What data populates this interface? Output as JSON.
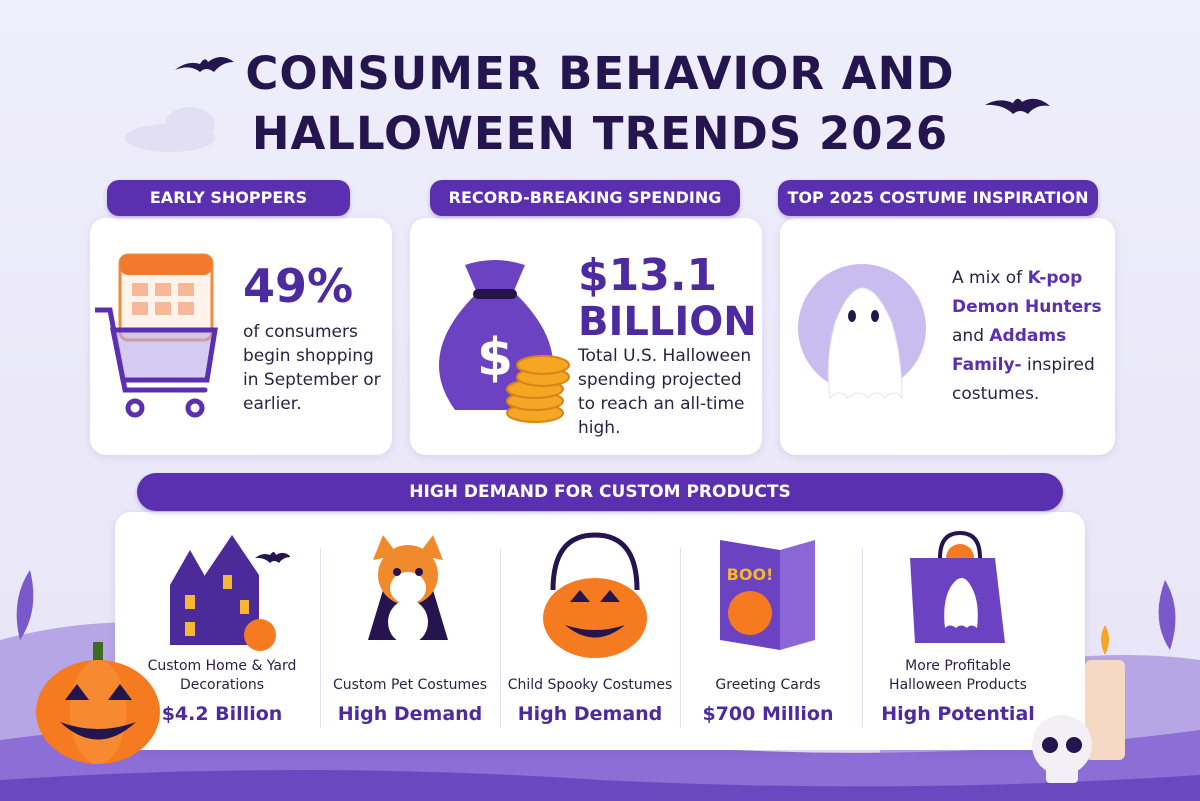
{
  "title": {
    "line1": "CONSUMER BEHAVIOR AND",
    "line2": "HALLOWEEN TRENDS 2026"
  },
  "cards": [
    {
      "header": "EARLY SHOPPERS",
      "stat": "49%",
      "text": "of consumers begin shopping in September or earlier."
    },
    {
      "header": "RECORD-BREAKING SPENDING",
      "stat": "$13.1",
      "stat_unit": "BILLION",
      "text": "Total U.S. Halloween spending projected to reach an all-time high."
    },
    {
      "header": "TOP 2025 COSTUME INSPIRATION",
      "text_parts": [
        "A mix of",
        "K-pop Demon Hunters",
        "and",
        "Addams Family-",
        "inspired costumes."
      ]
    }
  ],
  "custom_products": {
    "header": "HIGH DEMAND FOR CUSTOM PRODUCTS",
    "items": [
      {
        "label": "Custom Home & Yard Decorations",
        "value": "$4.2 Billion"
      },
      {
        "label": "Custom Pet Costumes",
        "value": "High Demand"
      },
      {
        "label": "Child Spooky Costumes",
        "value": "High Demand"
      },
      {
        "label": "Greeting Cards",
        "value": "$700 Million"
      },
      {
        "label": "More Profitable Halloween Products",
        "value": "High Potential"
      }
    ]
  }
}
